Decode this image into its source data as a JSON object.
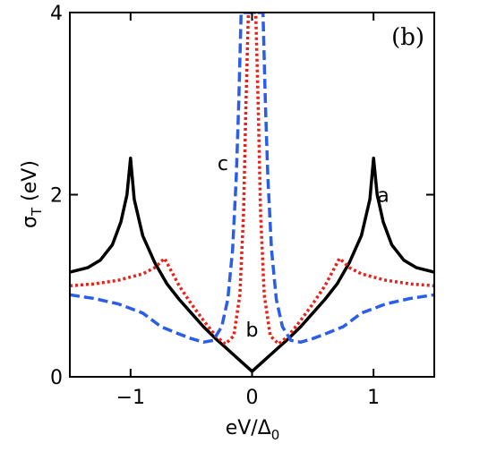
{
  "chart_data": {
    "type": "line",
    "panel_label": "(b)",
    "xlabel": "eV/Δ",
    "xlabel_sub": "0",
    "ylabel": "σ",
    "ylabel_sub": "T",
    "ylabel_unit": " (eV)",
    "xlim": [
      -1.5,
      1.5
    ],
    "ylim": [
      0,
      4
    ],
    "xticks": [
      -1,
      0,
      1
    ],
    "xtick_labels": [
      "−1",
      "0",
      "1"
    ],
    "yticks": [
      0,
      2,
      4
    ],
    "ytick_labels": [
      "0",
      "2",
      "4"
    ],
    "grid": false,
    "series": [
      {
        "name": "a",
        "color": "#000000",
        "style": "solid",
        "points": [
          [
            -1.5,
            1.15
          ],
          [
            -1.35,
            1.2
          ],
          [
            -1.25,
            1.28
          ],
          [
            -1.15,
            1.45
          ],
          [
            -1.08,
            1.7
          ],
          [
            -1.03,
            2.0
          ],
          [
            -1.0,
            2.4
          ],
          [
            -0.97,
            1.95
          ],
          [
            -0.9,
            1.55
          ],
          [
            -0.8,
            1.25
          ],
          [
            -0.7,
            1.02
          ],
          [
            -0.6,
            0.85
          ],
          [
            -0.5,
            0.7
          ],
          [
            -0.4,
            0.55
          ],
          [
            -0.3,
            0.42
          ],
          [
            -0.2,
            0.3
          ],
          [
            -0.1,
            0.18
          ],
          [
            0.0,
            0.06
          ],
          [
            0.1,
            0.18
          ],
          [
            0.2,
            0.3
          ],
          [
            0.3,
            0.42
          ],
          [
            0.4,
            0.55
          ],
          [
            0.5,
            0.7
          ],
          [
            0.6,
            0.85
          ],
          [
            0.7,
            1.02
          ],
          [
            0.8,
            1.25
          ],
          [
            0.9,
            1.55
          ],
          [
            0.97,
            1.95
          ],
          [
            1.0,
            2.4
          ],
          [
            1.03,
            2.0
          ],
          [
            1.08,
            1.7
          ],
          [
            1.15,
            1.45
          ],
          [
            1.25,
            1.28
          ],
          [
            1.35,
            1.2
          ],
          [
            1.5,
            1.15
          ]
        ],
        "label_at": [
          1.08,
          2.0
        ]
      },
      {
        "name": "b",
        "color": "#e8221a",
        "style": "dotted",
        "points": [
          [
            -1.5,
            1.0
          ],
          [
            -1.3,
            1.02
          ],
          [
            -1.1,
            1.06
          ],
          [
            -0.9,
            1.13
          ],
          [
            -0.8,
            1.2
          ],
          [
            -0.72,
            1.3
          ],
          [
            -0.6,
            1.0
          ],
          [
            -0.5,
            0.8
          ],
          [
            -0.4,
            0.62
          ],
          [
            -0.3,
            0.45
          ],
          [
            -0.22,
            0.36
          ],
          [
            -0.15,
            0.45
          ],
          [
            -0.1,
            0.9
          ],
          [
            -0.07,
            1.8
          ],
          [
            -0.05,
            3.0
          ],
          [
            -0.03,
            4.0
          ],
          [
            0.03,
            4.0
          ],
          [
            0.05,
            3.0
          ],
          [
            0.07,
            1.8
          ],
          [
            0.1,
            0.9
          ],
          [
            0.15,
            0.45
          ],
          [
            0.22,
            0.36
          ],
          [
            0.3,
            0.45
          ],
          [
            0.4,
            0.62
          ],
          [
            0.5,
            0.8
          ],
          [
            0.6,
            1.0
          ],
          [
            0.72,
            1.3
          ],
          [
            0.8,
            1.2
          ],
          [
            0.9,
            1.13
          ],
          [
            1.1,
            1.06
          ],
          [
            1.3,
            1.02
          ],
          [
            1.5,
            1.0
          ]
        ],
        "label_at": [
          0.0,
          0.52
        ]
      },
      {
        "name": "c",
        "color": "#2a5de8",
        "style": "dashed",
        "points": [
          [
            -1.5,
            0.9
          ],
          [
            -1.3,
            0.86
          ],
          [
            -1.1,
            0.8
          ],
          [
            -0.9,
            0.7
          ],
          [
            -0.75,
            0.55
          ],
          [
            -0.6,
            0.47
          ],
          [
            -0.5,
            0.42
          ],
          [
            -0.4,
            0.38
          ],
          [
            -0.32,
            0.4
          ],
          [
            -0.25,
            0.55
          ],
          [
            -0.2,
            0.85
          ],
          [
            -0.16,
            1.4
          ],
          [
            -0.13,
            2.2
          ],
          [
            -0.11,
            3.0
          ],
          [
            -0.09,
            4.0
          ],
          [
            0.09,
            4.0
          ],
          [
            0.11,
            3.0
          ],
          [
            0.13,
            2.2
          ],
          [
            0.16,
            1.4
          ],
          [
            0.2,
            0.85
          ],
          [
            0.25,
            0.55
          ],
          [
            0.32,
            0.4
          ],
          [
            0.4,
            0.38
          ],
          [
            0.5,
            0.42
          ],
          [
            0.6,
            0.47
          ],
          [
            0.75,
            0.55
          ],
          [
            0.9,
            0.7
          ],
          [
            1.1,
            0.8
          ],
          [
            1.3,
            0.86
          ],
          [
            1.5,
            0.9
          ]
        ],
        "label_at": [
          -0.24,
          2.35
        ]
      }
    ]
  }
}
